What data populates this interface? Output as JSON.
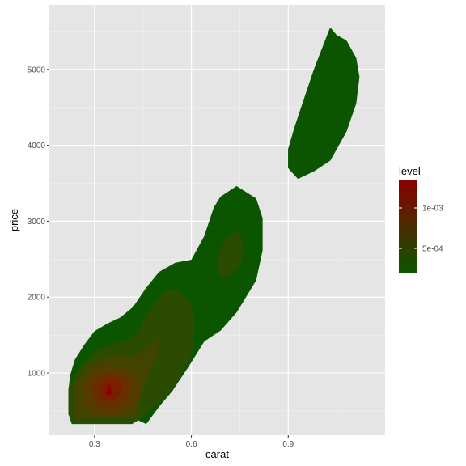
{
  "chart_data": {
    "type": "heatmap",
    "subtype": "filled density contour (2D kernel density of price vs carat)",
    "xlabel": "carat",
    "ylabel": "price",
    "xlim": [
      0.16,
      1.2
    ],
    "ylim": [
      180,
      5850
    ],
    "x_ticks": [
      0.3,
      0.6,
      0.9
    ],
    "x_tick_labels": [
      "0.3",
      "0.6",
      "0.9"
    ],
    "y_ticks": [
      1000,
      2000,
      3000,
      4000,
      5000
    ],
    "y_tick_labels": [
      "1000",
      "2000",
      "3000",
      "4000",
      "5000"
    ],
    "grid": true,
    "panel_background": "#e5e5e5",
    "legend": {
      "title": "level",
      "placement": "right",
      "low_color": "#0b5500",
      "high_color": "#8b0000",
      "range": [
        0.0002,
        0.00135
      ],
      "ticks": [
        0.0005,
        0.001
      ],
      "tick_labels": [
        "5e-04",
        "1e-03"
      ]
    },
    "contour_levels": [
      {
        "level": 0.0002,
        "color": "#0b5500",
        "regions": [
          [
            [
              0.225,
              970
            ],
            [
              0.24,
              1180
            ],
            [
              0.27,
              1380
            ],
            [
              0.3,
              1550
            ],
            [
              0.34,
              1650
            ],
            [
              0.38,
              1730
            ],
            [
              0.42,
              1870
            ],
            [
              0.46,
              2120
            ],
            [
              0.5,
              2330
            ],
            [
              0.55,
              2450
            ],
            [
              0.6,
              2490
            ],
            [
              0.64,
              2800
            ],
            [
              0.67,
              3180
            ],
            [
              0.69,
              3320
            ],
            [
              0.74,
              3460
            ],
            [
              0.8,
              3300
            ],
            [
              0.82,
              3040
            ],
            [
              0.82,
              2620
            ],
            [
              0.8,
              2220
            ],
            [
              0.74,
              1800
            ],
            [
              0.69,
              1560
            ],
            [
              0.64,
              1420
            ],
            [
              0.59,
              1080
            ],
            [
              0.54,
              760
            ],
            [
              0.5,
              560
            ],
            [
              0.46,
              330
            ],
            [
              0.43,
              390
            ],
            [
              0.42,
              330
            ],
            [
              0.23,
              330
            ],
            [
              0.22,
              460
            ],
            [
              0.22,
              780
            ]
          ],
          [
            [
              0.93,
              3560
            ],
            [
              0.98,
              3660
            ],
            [
              1.03,
              3800
            ],
            [
              1.08,
              4180
            ],
            [
              1.11,
              4550
            ],
            [
              1.12,
              4900
            ],
            [
              1.11,
              5150
            ],
            [
              1.08,
              5380
            ],
            [
              1.05,
              5450
            ],
            [
              1.03,
              5550
            ],
            [
              0.98,
              5000
            ],
            [
              0.95,
              4620
            ],
            [
              0.92,
              4240
            ],
            [
              0.9,
              3950
            ],
            [
              0.9,
              3700
            ]
          ]
        ]
      },
      {
        "level": 0.0004,
        "color": "#2b4c00",
        "regions": [
          [
            [
              0.22,
              450
            ],
            [
              0.22,
              800
            ],
            [
              0.25,
              1050
            ],
            [
              0.3,
              1280
            ],
            [
              0.35,
              1380
            ],
            [
              0.4,
              1420
            ],
            [
              0.44,
              1580
            ],
            [
              0.48,
              1880
            ],
            [
              0.52,
              2080
            ],
            [
              0.56,
              2100
            ],
            [
              0.6,
              1900
            ],
            [
              0.61,
              1600
            ],
            [
              0.6,
              1250
            ],
            [
              0.56,
              900
            ],
            [
              0.52,
              700
            ],
            [
              0.48,
              540
            ],
            [
              0.45,
              420
            ],
            [
              0.42,
              340
            ],
            [
              0.24,
              340
            ]
          ],
          [
            [
              0.68,
              2330
            ],
            [
              0.69,
              2650
            ],
            [
              0.72,
              2820
            ],
            [
              0.75,
              2880
            ],
            [
              0.76,
              2620
            ],
            [
              0.75,
              2420
            ],
            [
              0.72,
              2270
            ],
            [
              0.69,
              2270
            ]
          ]
        ]
      },
      {
        "level": 0.0006,
        "color": "#424300",
        "regions": [
          [
            [
              0.24,
              400
            ],
            [
              0.24,
              820
            ],
            [
              0.27,
              1050
            ],
            [
              0.31,
              1180
            ],
            [
              0.36,
              1240
            ],
            [
              0.42,
              1220
            ],
            [
              0.46,
              1320
            ],
            [
              0.5,
              1480
            ],
            [
              0.49,
              1200
            ],
            [
              0.46,
              900
            ],
            [
              0.44,
              640
            ],
            [
              0.43,
              410
            ]
          ]
        ]
      },
      {
        "level": 0.0008,
        "color": "#563a00",
        "regions": [
          [
            [
              0.27,
              560
            ],
            [
              0.26,
              830
            ],
            [
              0.29,
              1020
            ],
            [
              0.34,
              1090
            ],
            [
              0.39,
              1060
            ],
            [
              0.43,
              960
            ],
            [
              0.44,
              760
            ],
            [
              0.42,
              570
            ],
            [
              0.39,
              460
            ],
            [
              0.34,
              430
            ],
            [
              0.3,
              470
            ]
          ]
        ]
      },
      {
        "level": 0.001,
        "color": "#6a2d00",
        "regions": [
          [
            [
              0.3,
              640
            ],
            [
              0.29,
              850
            ],
            [
              0.32,
              980
            ],
            [
              0.36,
              1000
            ],
            [
              0.4,
              930
            ],
            [
              0.41,
              760
            ],
            [
              0.39,
              600
            ],
            [
              0.35,
              540
            ],
            [
              0.32,
              560
            ]
          ]
        ]
      },
      {
        "level": 0.0012,
        "color": "#7b1d00",
        "regions": [
          [
            [
              0.32,
              700
            ],
            [
              0.32,
              860
            ],
            [
              0.35,
              930
            ],
            [
              0.38,
              880
            ],
            [
              0.38,
              730
            ],
            [
              0.36,
              640
            ],
            [
              0.33,
              650
            ]
          ]
        ]
      },
      {
        "level": 0.00135,
        "color": "#8b0000",
        "regions": [
          [
            [
              0.335,
              720
            ],
            [
              0.345,
              860
            ],
            [
              0.355,
              720
            ]
          ]
        ]
      }
    ]
  }
}
